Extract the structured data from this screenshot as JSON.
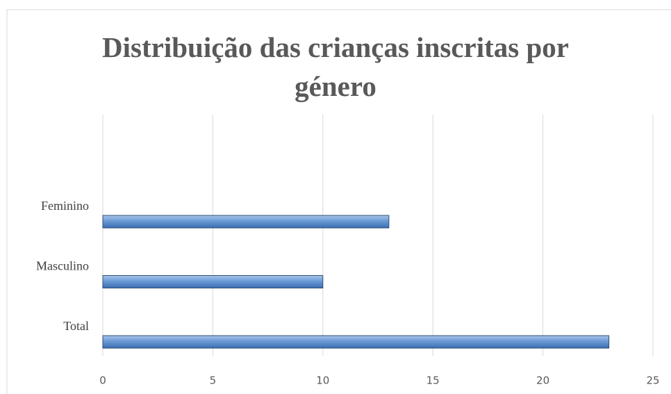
{
  "chart_data": {
    "type": "barh",
    "title": "Distribuição das crianças inscritas por género",
    "categories": [
      "Feminino",
      "Masculino",
      "Total"
    ],
    "values": [
      13,
      10,
      23
    ],
    "color": "#4f81bd",
    "xlim": [
      0,
      25
    ],
    "xticks": [
      0,
      5,
      10,
      15,
      20,
      25
    ],
    "grid": true
  }
}
